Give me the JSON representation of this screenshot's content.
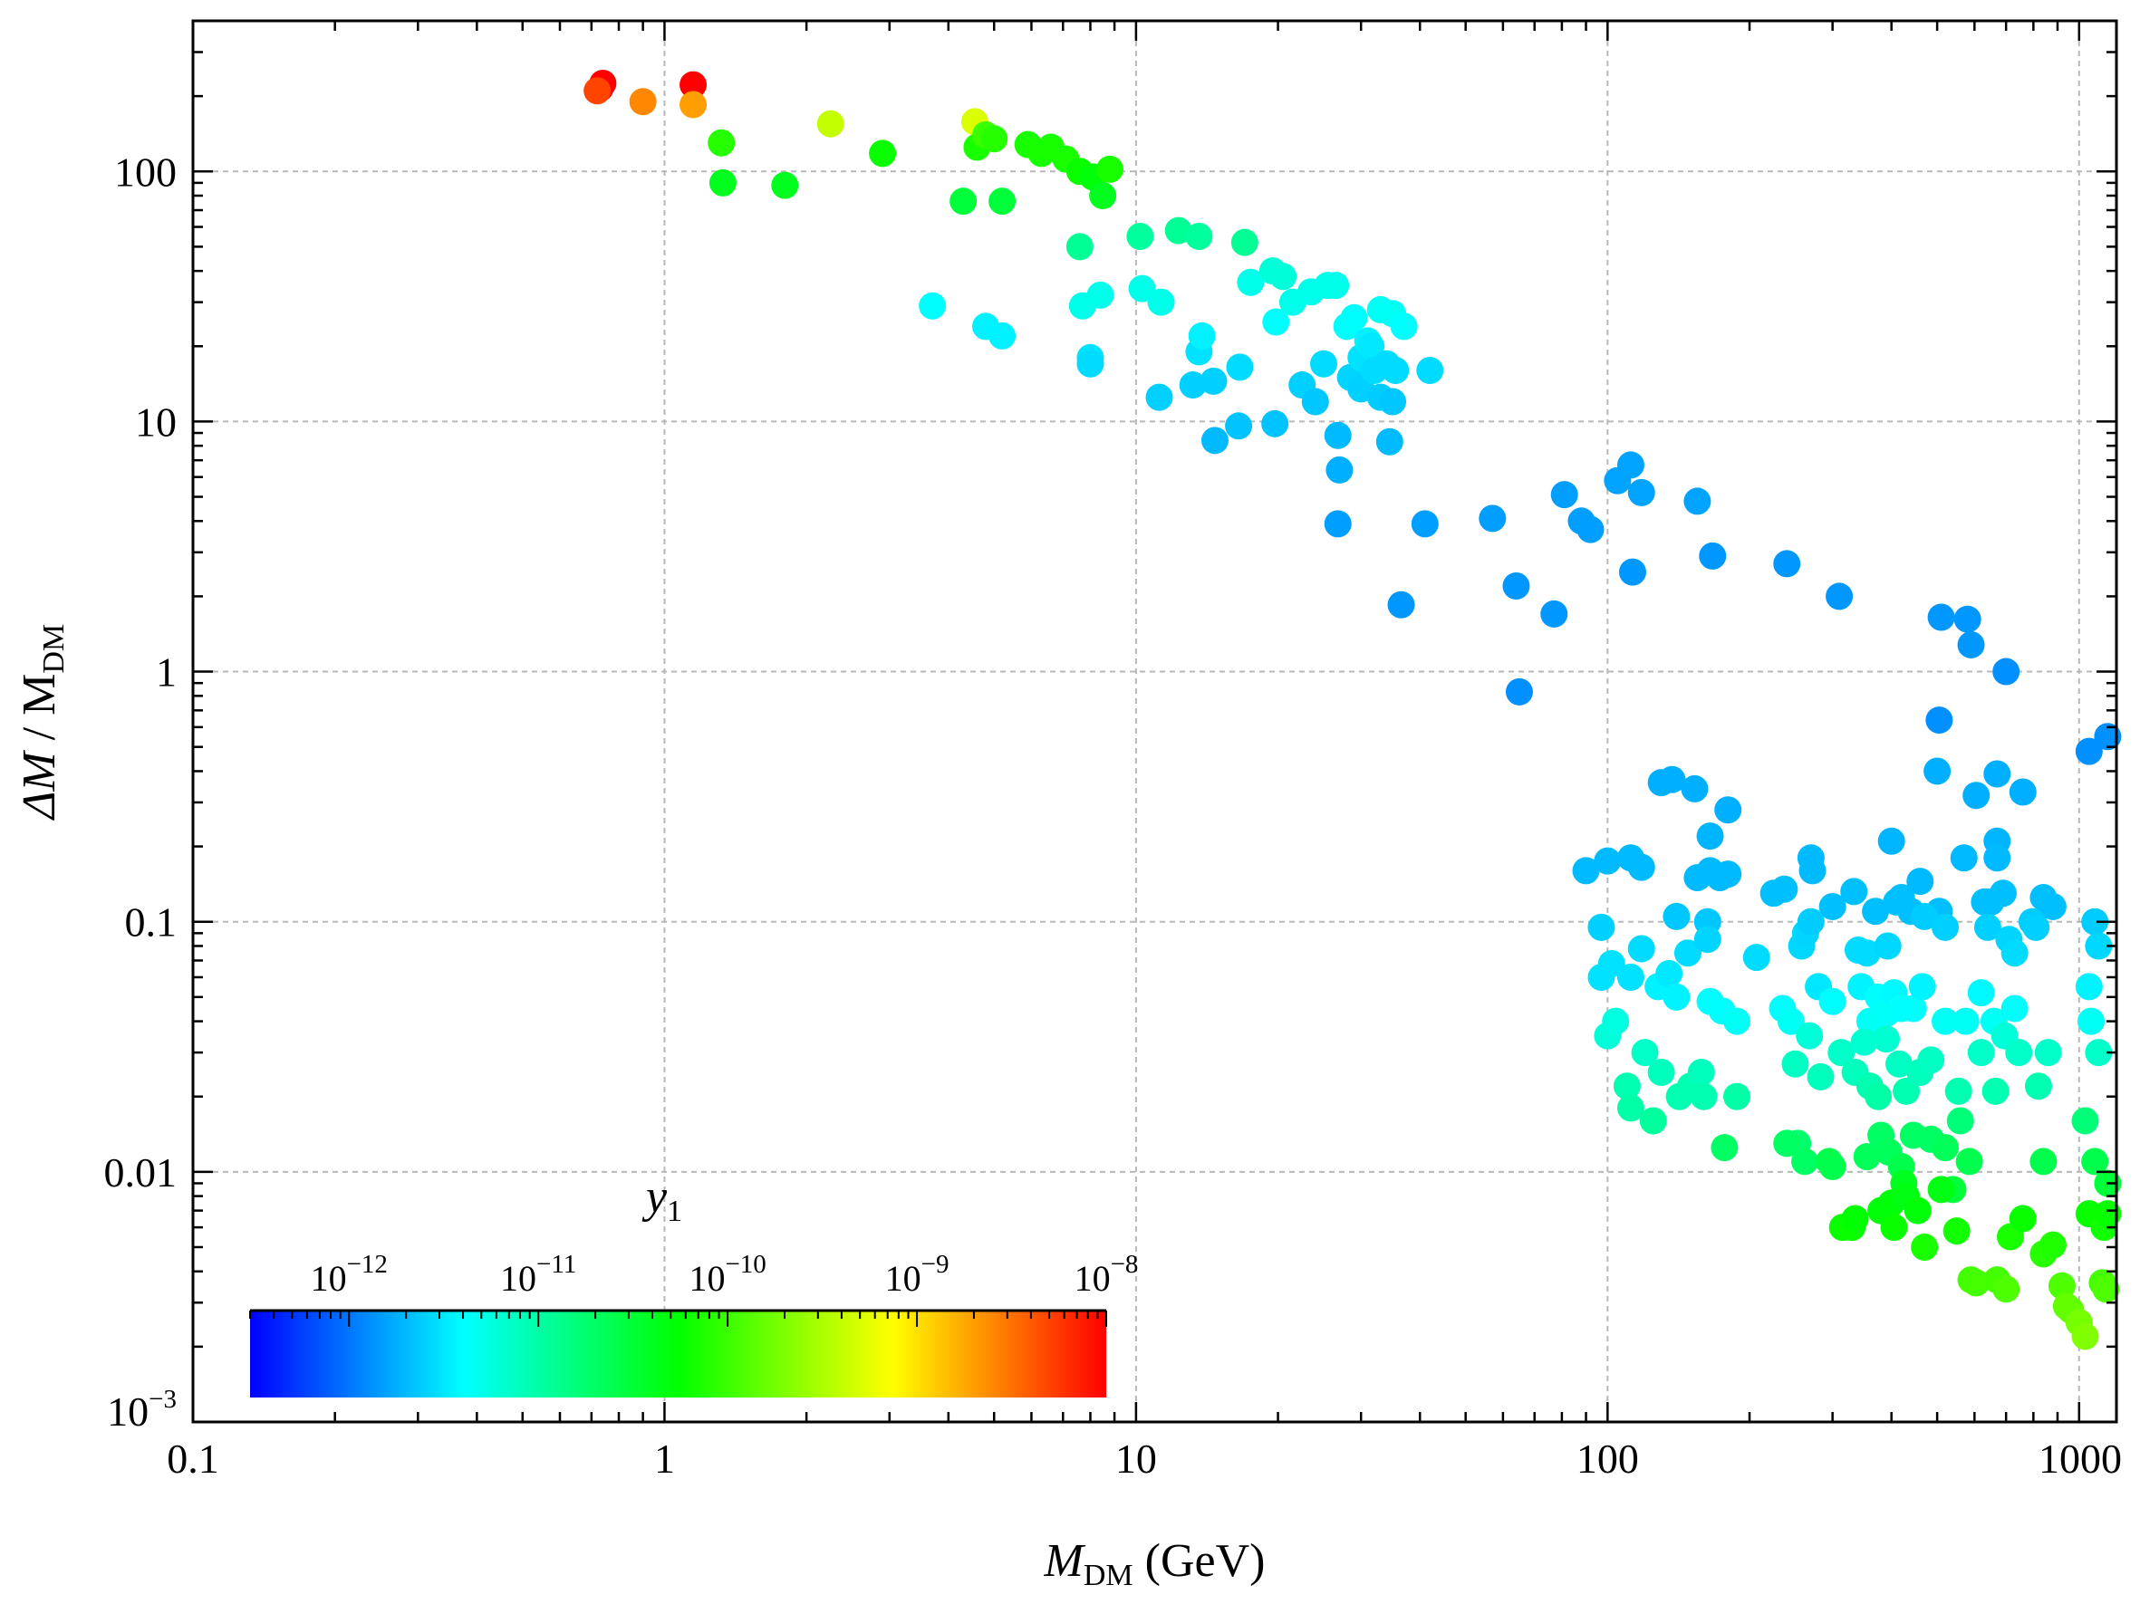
{
  "chart_data": {
    "type": "scatter",
    "title": "",
    "xlabel": {
      "main": "M",
      "sub": "DM",
      "rest": " (GeV)"
    },
    "ylabel": {
      "main": "ΔM",
      "rest": " / M",
      "sub": "DM"
    },
    "x_scale": "log",
    "y_scale": "log",
    "xlim": [
      0.1,
      1200
    ],
    "ylim": [
      0.001,
      400
    ],
    "grid": true,
    "x_ticks": [
      {
        "v": 0.1,
        "label": "0.1"
      },
      {
        "v": 1,
        "label": "1"
      },
      {
        "v": 10,
        "label": "10"
      },
      {
        "v": 100,
        "label": "100"
      },
      {
        "v": 1000,
        "label": "1000"
      }
    ],
    "y_ticks": [
      {
        "v": 0.001,
        "base": "10",
        "exp": "−3"
      },
      {
        "v": 0.01,
        "label": "0.01"
      },
      {
        "v": 0.1,
        "label": "0.1"
      },
      {
        "v": 1,
        "label": "1"
      },
      {
        "v": 10,
        "label": "10"
      },
      {
        "v": 100,
        "label": "100"
      }
    ],
    "colorbar": {
      "title": "y",
      "title_sub": "1",
      "scale": "log",
      "range": [
        3e-13,
        1e-08
      ],
      "colormap": [
        "#0000ff",
        "#00ffff",
        "#00ff00",
        "#ffff00",
        "#ff0000"
      ],
      "ticks": [
        {
          "v": 1e-12,
          "base": "10",
          "exp": "−12"
        },
        {
          "v": 1e-11,
          "base": "10",
          "exp": "−11"
        },
        {
          "v": 1e-10,
          "base": "10",
          "exp": "−10"
        },
        {
          "v": 1e-09,
          "base": "10",
          "exp": "−9"
        },
        {
          "v": 1e-08,
          "base": "10",
          "exp": "−8"
        }
      ]
    },
    "points": [
      [
        0.73,
        215,
        1e-08
      ],
      [
        0.74,
        225,
        1.2e-08
      ],
      [
        0.72,
        210,
        5e-09
      ],
      [
        0.9,
        190,
        2.5e-09
      ],
      [
        1.15,
        222,
        1e-08
      ],
      [
        1.15,
        185,
        2e-09
      ],
      [
        1.32,
        130,
        8e-11
      ],
      [
        1.33,
        90,
        4e-11
      ],
      [
        1.8,
        88,
        4e-11
      ],
      [
        2.25,
        155,
        4e-10
      ],
      [
        2.9,
        118,
        6e-11
      ],
      [
        4.3,
        76,
        3e-11
      ],
      [
        4.55,
        158,
        5e-10
      ],
      [
        4.6,
        125,
        7e-11
      ],
      [
        4.8,
        140,
        1e-10
      ],
      [
        5,
        135,
        8e-11
      ],
      [
        5.2,
        76,
        3e-11
      ],
      [
        5.9,
        128,
        7e-11
      ],
      [
        6.3,
        118,
        7e-11
      ],
      [
        6.6,
        125,
        7e-11
      ],
      [
        7.1,
        112,
        7e-11
      ],
      [
        7.6,
        100,
        6e-11
      ],
      [
        8.1,
        95,
        5e-11
      ],
      [
        8.5,
        80,
        4e-11
      ],
      [
        8.8,
        102,
        7e-11
      ],
      [
        7.6,
        50,
        1.2e-11
      ],
      [
        10.2,
        55,
        1.1e-11
      ],
      [
        12.3,
        58,
        1.2e-11
      ],
      [
        13.6,
        55,
        1.1e-11
      ],
      [
        17,
        52,
        1.2e-11
      ],
      [
        3.7,
        29,
        4e-12
      ],
      [
        4.8,
        24,
        3.5e-12
      ],
      [
        5.2,
        22,
        3.5e-12
      ],
      [
        7.7,
        29,
        5e-12
      ],
      [
        8.4,
        32,
        5e-12
      ],
      [
        8,
        18,
        3e-12
      ],
      [
        8,
        17,
        2.8e-12
      ],
      [
        10.3,
        34,
        5e-12
      ],
      [
        11.3,
        30,
        5e-12
      ],
      [
        11.2,
        12.5,
        2.5e-12
      ],
      [
        13.2,
        14,
        2.5e-12
      ],
      [
        13.6,
        19,
        3e-12
      ],
      [
        13.8,
        22,
        3.5e-12
      ],
      [
        14.6,
        14.5,
        2.5e-12
      ],
      [
        14.7,
        8.4,
        2e-12
      ],
      [
        16.5,
        9.6,
        2.2e-12
      ],
      [
        16.6,
        16.5,
        2.8e-12
      ],
      [
        17.5,
        36,
        5e-12
      ],
      [
        19.7,
        9.8,
        2.2e-12
      ],
      [
        19.8,
        25,
        4e-12
      ],
      [
        19.5,
        40,
        6e-12
      ],
      [
        20.5,
        38,
        6e-12
      ],
      [
        21.5,
        30,
        5e-12
      ],
      [
        22.5,
        14,
        2.5e-12
      ],
      [
        23.5,
        33,
        5e-12
      ],
      [
        24,
        12,
        2.3e-12
      ],
      [
        25,
        17,
        2.8e-12
      ],
      [
        25.5,
        35,
        5e-12
      ],
      [
        26.5,
        35,
        5e-12
      ],
      [
        26.8,
        8.8,
        2e-12
      ],
      [
        27,
        6.4,
        1.8e-12
      ],
      [
        26.8,
        3.9,
        1.5e-12
      ],
      [
        28,
        24,
        4e-12
      ],
      [
        28.5,
        15,
        2.6e-12
      ],
      [
        29,
        26,
        4.2e-12
      ],
      [
        30,
        18,
        3e-12
      ],
      [
        30,
        13.5,
        2.5e-12
      ],
      [
        31,
        21,
        3.5e-12
      ],
      [
        31.5,
        20,
        3.2e-12
      ],
      [
        32,
        16,
        2.8e-12
      ],
      [
        33,
        12.5,
        2.4e-12
      ],
      [
        33,
        28,
        4.5e-12
      ],
      [
        34,
        17,
        2.8e-12
      ],
      [
        34.5,
        8.3,
        2e-12
      ],
      [
        35,
        12,
        2.3e-12
      ],
      [
        35.5,
        16,
        2.8e-12
      ],
      [
        35,
        27,
        4.5e-12
      ],
      [
        36.5,
        1.85,
        1.4e-12
      ],
      [
        37,
        24,
        4e-12
      ],
      [
        41,
        3.9,
        1.5e-12
      ],
      [
        42,
        16,
        2.8e-12
      ],
      [
        57,
        4.1,
        1.5e-12
      ],
      [
        64,
        2.2,
        1.4e-12
      ],
      [
        65,
        0.83,
        1.3e-12
      ],
      [
        77,
        1.7,
        1.4e-12
      ],
      [
        81,
        5.1,
        1.5e-12
      ],
      [
        88,
        4,
        1.5e-12
      ],
      [
        92,
        3.7,
        1.5e-12
      ],
      [
        105,
        5.8,
        1.6e-12
      ],
      [
        112,
        6.7,
        1.6e-12
      ],
      [
        113,
        2.5,
        1.4e-12
      ],
      [
        118,
        5.2,
        1.6e-12
      ],
      [
        155,
        4.8,
        1.6e-12
      ],
      [
        167,
        2.9,
        1.4e-12
      ],
      [
        240,
        2.7,
        1.4e-12
      ],
      [
        310,
        2,
        1.4e-12
      ],
      [
        510,
        1.65,
        1.4e-12
      ],
      [
        580,
        1.62,
        1.4e-12
      ],
      [
        590,
        1.28,
        1.4e-12
      ],
      [
        700,
        1,
        1.3e-12
      ],
      [
        505,
        0.64,
        1.3e-12
      ],
      [
        1050,
        0.48,
        1.3e-12
      ],
      [
        1150,
        0.55,
        1.3e-12
      ],
      [
        90,
        0.16,
        2e-12
      ],
      [
        100,
        0.175,
        2e-12
      ],
      [
        112,
        0.18,
        2e-12
      ],
      [
        118,
        0.165,
        2e-12
      ],
      [
        130,
        0.36,
        1.8e-12
      ],
      [
        137,
        0.37,
        1.8e-12
      ],
      [
        153,
        0.34,
        1.8e-12
      ],
      [
        165,
        0.22,
        1.9e-12
      ],
      [
        180,
        0.28,
        1.8e-12
      ],
      [
        155,
        0.15,
        2e-12
      ],
      [
        165,
        0.16,
        2e-12
      ],
      [
        173,
        0.15,
        2e-12
      ],
      [
        180,
        0.155,
        2e-12
      ],
      [
        225,
        0.13,
        2.1e-12
      ],
      [
        237,
        0.135,
        2.1e-12
      ],
      [
        270,
        0.18,
        2e-12
      ],
      [
        272,
        0.16,
        2e-12
      ],
      [
        300,
        0.115,
        2.1e-12
      ],
      [
        333,
        0.132,
        2.1e-12
      ],
      [
        370,
        0.11,
        2.1e-12
      ],
      [
        400,
        0.21,
        1.9e-12
      ],
      [
        410,
        0.12,
        2.1e-12
      ],
      [
        420,
        0.125,
        2.1e-12
      ],
      [
        440,
        0.11,
        2.1e-12
      ],
      [
        460,
        0.145,
        2e-12
      ],
      [
        500,
        0.4,
        1.8e-12
      ],
      [
        505,
        0.11,
        2.1e-12
      ],
      [
        570,
        0.18,
        2e-12
      ],
      [
        605,
        0.32,
        1.8e-12
      ],
      [
        630,
        0.12,
        2.1e-12
      ],
      [
        650,
        0.12,
        2.1e-12
      ],
      [
        670,
        0.21,
        1.9e-12
      ],
      [
        670,
        0.18,
        2e-12
      ],
      [
        670,
        0.39,
        1.8e-12
      ],
      [
        690,
        0.13,
        2.1e-12
      ],
      [
        760,
        0.33,
        1.8e-12
      ],
      [
        840,
        0.125,
        2.1e-12
      ],
      [
        880,
        0.115,
        2.1e-12
      ],
      [
        97,
        0.095,
        2.5e-12
      ],
      [
        97,
        0.06,
        3e-12
      ],
      [
        102,
        0.068,
        3e-12
      ],
      [
        112,
        0.06,
        3e-12
      ],
      [
        118,
        0.078,
        2.8e-12
      ],
      [
        140,
        0.105,
        2.3e-12
      ],
      [
        148,
        0.075,
        2.8e-12
      ],
      [
        163,
        0.1,
        2.3e-12
      ],
      [
        163,
        0.085,
        2.6e-12
      ],
      [
        207,
        0.072,
        2.8e-12
      ],
      [
        258,
        0.08,
        2.7e-12
      ],
      [
        263,
        0.09,
        2.6e-12
      ],
      [
        270,
        0.1,
        2.4e-12
      ],
      [
        280,
        0.055,
        3.2e-12
      ],
      [
        340,
        0.077,
        2.8e-12
      ],
      [
        355,
        0.075,
        2.8e-12
      ],
      [
        393,
        0.08,
        2.7e-12
      ],
      [
        470,
        0.105,
        2.4e-12
      ],
      [
        520,
        0.095,
        2.5e-12
      ],
      [
        640,
        0.095,
        2.5e-12
      ],
      [
        710,
        0.085,
        2.6e-12
      ],
      [
        730,
        0.075,
        2.8e-12
      ],
      [
        795,
        0.1,
        2.4e-12
      ],
      [
        810,
        0.095,
        2.5e-12
      ],
      [
        1080,
        0.1,
        2.4e-12
      ],
      [
        1100,
        0.08,
        2.7e-12
      ],
      [
        128,
        0.055,
        3.5e-12
      ],
      [
        135,
        0.062,
        3.2e-12
      ],
      [
        140,
        0.05,
        3.6e-12
      ],
      [
        165,
        0.048,
        4e-12
      ],
      [
        175,
        0.044,
        4.2e-12
      ],
      [
        188,
        0.04,
        4.5e-12
      ],
      [
        235,
        0.045,
        4e-12
      ],
      [
        245,
        0.04,
        4.5e-12
      ],
      [
        300,
        0.048,
        4e-12
      ],
      [
        345,
        0.055,
        3.6e-12
      ],
      [
        360,
        0.04,
        4.5e-12
      ],
      [
        375,
        0.05,
        4e-12
      ],
      [
        390,
        0.043,
        4.3e-12
      ],
      [
        405,
        0.052,
        3.8e-12
      ],
      [
        420,
        0.045,
        4.2e-12
      ],
      [
        445,
        0.045,
        4.2e-12
      ],
      [
        465,
        0.055,
        3.6e-12
      ],
      [
        520,
        0.04,
        4.5e-12
      ],
      [
        575,
        0.04,
        4.5e-12
      ],
      [
        620,
        0.052,
        3.8e-12
      ],
      [
        660,
        0.04,
        4.5e-12
      ],
      [
        730,
        0.045,
        4.2e-12
      ],
      [
        1050,
        0.055,
        3.6e-12
      ],
      [
        1060,
        0.04,
        4.5e-12
      ],
      [
        100,
        0.035,
        6e-12
      ],
      [
        104,
        0.04,
        5.5e-12
      ],
      [
        110,
        0.022,
        9e-12
      ],
      [
        112,
        0.018,
        1e-11
      ],
      [
        120,
        0.03,
        7e-12
      ],
      [
        125,
        0.016,
        1.1e-11
      ],
      [
        130,
        0.025,
        8e-12
      ],
      [
        142,
        0.02,
        9e-12
      ],
      [
        150,
        0.022,
        9e-12
      ],
      [
        158,
        0.025,
        8e-12
      ],
      [
        160,
        0.02,
        9e-12
      ],
      [
        177,
        0.0125,
        2e-11
      ],
      [
        188,
        0.02,
        1e-11
      ],
      [
        250,
        0.027,
        7.5e-12
      ],
      [
        253,
        0.013,
        1.8e-11
      ],
      [
        262,
        0.011,
        2e-11
      ],
      [
        268,
        0.035,
        6e-12
      ],
      [
        283,
        0.024,
        8e-12
      ],
      [
        313,
        0.03,
        7e-12
      ],
      [
        335,
        0.025,
        8e-12
      ],
      [
        350,
        0.033,
        6.5e-12
      ],
      [
        360,
        0.022,
        9e-12
      ],
      [
        375,
        0.02,
        1e-11
      ],
      [
        390,
        0.034,
        6.5e-12
      ],
      [
        415,
        0.027,
        7.5e-12
      ],
      [
        430,
        0.021,
        9e-12
      ],
      [
        460,
        0.025,
        8e-12
      ],
      [
        485,
        0.028,
        7.5e-12
      ],
      [
        555,
        0.021,
        9e-12
      ],
      [
        620,
        0.03,
        7e-12
      ],
      [
        665,
        0.021,
        9e-12
      ],
      [
        695,
        0.035,
        6e-12
      ],
      [
        745,
        0.03,
        7e-12
      ],
      [
        820,
        0.022,
        9e-12
      ],
      [
        860,
        0.03,
        7e-12
      ],
      [
        1100,
        0.03,
        7e-12
      ],
      [
        240,
        0.013,
        2e-11
      ],
      [
        295,
        0.011,
        2.5e-11
      ],
      [
        300,
        0.0105,
        2.5e-11
      ],
      [
        355,
        0.0115,
        2.2e-11
      ],
      [
        380,
        0.014,
        2e-11
      ],
      [
        395,
        0.012,
        2.2e-11
      ],
      [
        420,
        0.0105,
        2.5e-11
      ],
      [
        445,
        0.014,
        2e-11
      ],
      [
        485,
        0.0135,
        2e-11
      ],
      [
        520,
        0.0125,
        2.2e-11
      ],
      [
        540,
        0.0085,
        3e-11
      ],
      [
        560,
        0.016,
        1.6e-11
      ],
      [
        585,
        0.011,
        2.5e-11
      ],
      [
        840,
        0.011,
        2.5e-11
      ],
      [
        1030,
        0.016,
        1.6e-11
      ],
      [
        1080,
        0.011,
        2.5e-11
      ],
      [
        1150,
        0.009,
        3e-11
      ],
      [
        315,
        0.006,
        6e-11
      ],
      [
        330,
        0.006,
        6e-11
      ],
      [
        335,
        0.0065,
        5.5e-11
      ],
      [
        380,
        0.007,
        5e-11
      ],
      [
        400,
        0.0075,
        5e-11
      ],
      [
        405,
        0.006,
        6e-11
      ],
      [
        425,
        0.009,
        4e-11
      ],
      [
        430,
        0.008,
        4.5e-11
      ],
      [
        455,
        0.007,
        5e-11
      ],
      [
        470,
        0.005,
        7e-11
      ],
      [
        510,
        0.0085,
        4.5e-11
      ],
      [
        550,
        0.0058,
        6.5e-11
      ],
      [
        590,
        0.0037,
        1.1e-10
      ],
      [
        605,
        0.0036,
        1.1e-10
      ],
      [
        670,
        0.0037,
        1.1e-10
      ],
      [
        700,
        0.0034,
        1.2e-10
      ],
      [
        715,
        0.0055,
        7e-11
      ],
      [
        760,
        0.0065,
        6e-11
      ],
      [
        840,
        0.0047,
        8e-11
      ],
      [
        880,
        0.0051,
        7.5e-11
      ],
      [
        920,
        0.0035,
        1.2e-10
      ],
      [
        940,
        0.0029,
        1.5e-10
      ],
      [
        960,
        0.0028,
        1.5e-10
      ],
      [
        1000,
        0.0025,
        1.8e-10
      ],
      [
        1030,
        0.0022,
        2e-10
      ],
      [
        1050,
        0.0068,
        6e-11
      ],
      [
        1120,
        0.0036,
        1.1e-10
      ],
      [
        1130,
        0.006,
        6.5e-11
      ],
      [
        1140,
        0.0034,
        1.2e-10
      ],
      [
        1150,
        0.0068,
        6e-11
      ]
    ]
  }
}
